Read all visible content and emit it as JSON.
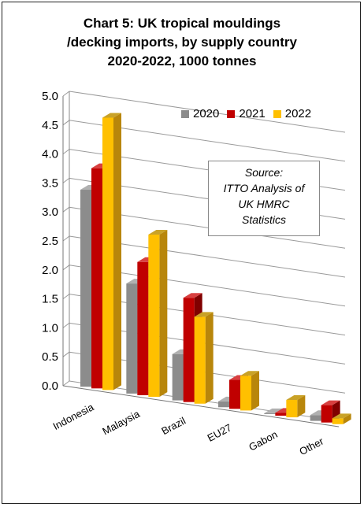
{
  "chart_data": {
    "type": "bar",
    "title_lines": [
      "Chart 5: UK tropical mouldings",
      "/decking imports, by supply country",
      "2020-2022, 1000 tonnes"
    ],
    "categories": [
      "Indonesia",
      "Malaysia",
      "Brazil",
      "EU27",
      "Gabon",
      "Other"
    ],
    "series": [
      {
        "name": "2020",
        "values": [
          3.4,
          1.9,
          0.8,
          0.1,
          0.0,
          0.1
        ],
        "color": "#8C8C8C",
        "dark": "#5F5F5F",
        "light": "#B0B0B0"
      },
      {
        "name": "2021",
        "values": [
          3.8,
          2.3,
          1.8,
          0.5,
          0.05,
          0.3
        ],
        "color": "#C00000",
        "dark": "#800000",
        "light": "#D84040"
      },
      {
        "name": "2022",
        "values": [
          4.7,
          2.8,
          1.5,
          0.6,
          0.3,
          0.1
        ],
        "color": "#FFC000",
        "dark": "#B8860B",
        "light": "#C9A227"
      }
    ],
    "ylim": [
      0,
      5.0
    ],
    "y_ticks": [
      "0.0",
      "0.5",
      "1.0",
      "1.5",
      "2.0",
      "2.5",
      "3.0",
      "3.5",
      "4.0",
      "4.5",
      "5.0"
    ],
    "grid": true,
    "legend_position": "top-right",
    "annotation_lines": [
      "Source:",
      "ITTO Analysis of",
      "UK HMRC",
      "Statistics"
    ]
  }
}
